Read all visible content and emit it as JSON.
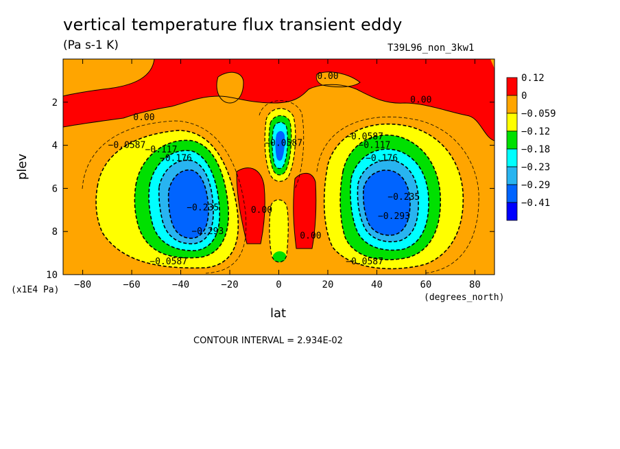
{
  "header": {
    "title": "vertical temperature flux transient eddy",
    "units": "(Pa s-1 K)",
    "run_name": "T39L96_non_3kw1"
  },
  "footer": {
    "contour_interval": "CONTOUR INTERVAL = 2.934E-02"
  },
  "chart_data": {
    "type": "heatmap",
    "title": "vertical temperature flux transient eddy",
    "xlabel": "lat",
    "ylabel": "plev",
    "x_unit": "(degrees_north)",
    "y_unit": "(x1E4 Pa)",
    "xlim": [
      -88,
      88
    ],
    "ylim": [
      10,
      0
    ],
    "x_ticks": [
      -80,
      -60,
      -40,
      -20,
      0,
      20,
      40,
      60,
      80
    ],
    "y_ticks": [
      2,
      4,
      6,
      8,
      10
    ],
    "colorbar": {
      "labels": [
        "0.12",
        "0",
        "−0.059",
        "−0.12",
        "−0.18",
        "−0.23",
        "−0.29",
        "−0.41"
      ],
      "colors": [
        "#ff0000",
        "#ffa500",
        "#ffff00",
        "#00e000",
        "#00ffff",
        "#28b4f0",
        "#0064ff",
        "#0000ff"
      ]
    },
    "contour_labels": [
      {
        "text": "0.00",
        "x": 20,
        "y": 0.8
      },
      {
        "text": "0.00",
        "x": 58,
        "y": 1.9
      },
      {
        "text": "0.00",
        "x": -55,
        "y": 2.7
      },
      {
        "text": "−0.0587",
        "x": -62,
        "y": 4.0
      },
      {
        "text": "−0.117",
        "x": -48,
        "y": 4.2
      },
      {
        "text": "−0.176",
        "x": -42,
        "y": 4.6
      },
      {
        "text": "−0.235",
        "x": -31,
        "y": 6.9
      },
      {
        "text": "−0.293",
        "x": -29,
        "y": 8.0
      },
      {
        "text": "−0.0587",
        "x": 2,
        "y": 3.9
      },
      {
        "text": "0.00",
        "x": -7,
        "y": 7.0
      },
      {
        "text": "0.00",
        "x": 13,
        "y": 8.2
      },
      {
        "text": "−0.0587",
        "x": 35,
        "y": 3.6
      },
      {
        "text": "−0.117",
        "x": 39,
        "y": 4.0
      },
      {
        "text": "−0.176",
        "x": 42,
        "y": 4.6
      },
      {
        "text": "−0.293",
        "x": 47,
        "y": 7.3
      },
      {
        "text": "−0.235",
        "x": 51,
        "y": 6.4
      },
      {
        "text": "−0.0587",
        "x": -45,
        "y": 9.4
      },
      {
        "text": "−0.0587",
        "x": 35,
        "y": 9.4
      }
    ]
  }
}
